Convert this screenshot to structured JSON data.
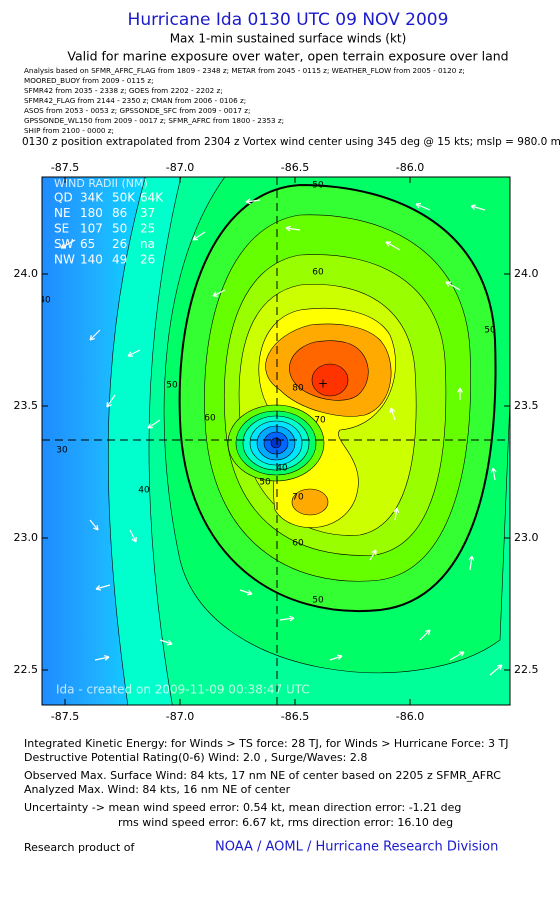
{
  "header": {
    "title": "Hurricane Ida 0130 UTC 09 NOV 2009",
    "subtitle": "Max 1-min sustained surface winds (kt)",
    "validity": "Valid for marine exposure over water, open terrain exposure over land",
    "sources": [
      "Analysis based on  SFMR_AFRC_FLAG from 1809 - 2348 z;   METAR from 2045 - 0115 z;   WEATHER_FLOW from 2005 - 0120 z;",
      "MOORED_BUOY from  2009 - 0115 z;",
      "SFMR42 from 2035 - 2338 z;   GOES from  2202 - 2202 z;",
      "SFMR42_FLAG from 2144 - 2350 z;   CMAN from 2006 - 0106 z;",
      "ASOS from 2053 - 0053 z;   GPSSONDE_SFC from 2009 - 0017 z;",
      "GPSSONDE_WL150 from 2009 - 0017 z;   SFMR_AFRC from 1800 - 2353 z;",
      "SHIP from 2100 - 0000 z;"
    ],
    "position_note": "0130 z position extrapolated from 2304 z Vortex wind center using 345 deg @ 15 kts; mslp = 980.0 mb"
  },
  "map": {
    "xticks": [
      -87.5,
      {
        "value": -87,
        "label": "-87.0"
      },
      -86.5,
      {
        "value": -86,
        "label": "-86.0"
      }
    ],
    "yticks": [
      22.5,
      {
        "value": 23,
        "label": "23.0"
      },
      23.5,
      {
        "value": 24,
        "label": "24.0"
      }
    ],
    "contour_labels": [
      "50",
      "60",
      "50",
      "60",
      "70",
      "80",
      "40",
      "50",
      "70",
      "60",
      "50",
      "50",
      "40",
      "30",
      "40"
    ],
    "radii_title": "WIND RADII (NM)",
    "radii_rows": [
      [
        "QD",
        "34K",
        "50K",
        "64K"
      ],
      [
        "NE",
        "180",
        "86",
        "37"
      ],
      [
        "SE",
        "107",
        "50",
        "25"
      ],
      [
        "SW",
        "65",
        "26",
        "na"
      ],
      [
        "NW",
        "140",
        "49",
        "26"
      ]
    ],
    "watermark": "Ida - created on 2009-11-09 00:38:47 UTC"
  },
  "footer": {
    "lines": [
      "Integrated Kinetic Energy:  for Winds > TS force: 28 TJ,  for Winds > Hurricane Force: 3 TJ",
      "Destructive Potential Rating(0-6)   Wind: 2.0 , Surge/Waves: 2.8",
      "Observed Max. Surface Wind: 84 kts, 17 nm NE of center based on 2205 z SFMR_AFRC",
      "Analyzed Max. Wind: 84 kts, 16 nm NE of center",
      "Uncertainty -> mean wind speed error: 0.54 kt,   mean direction error:  -1.21 deg",
      "rms wind speed error: 6.67 kt,   rms direction error: 16.10 deg"
    ],
    "credit": "Research product of",
    "org": "NOAA / AOML / Hurricane Research Division"
  }
}
